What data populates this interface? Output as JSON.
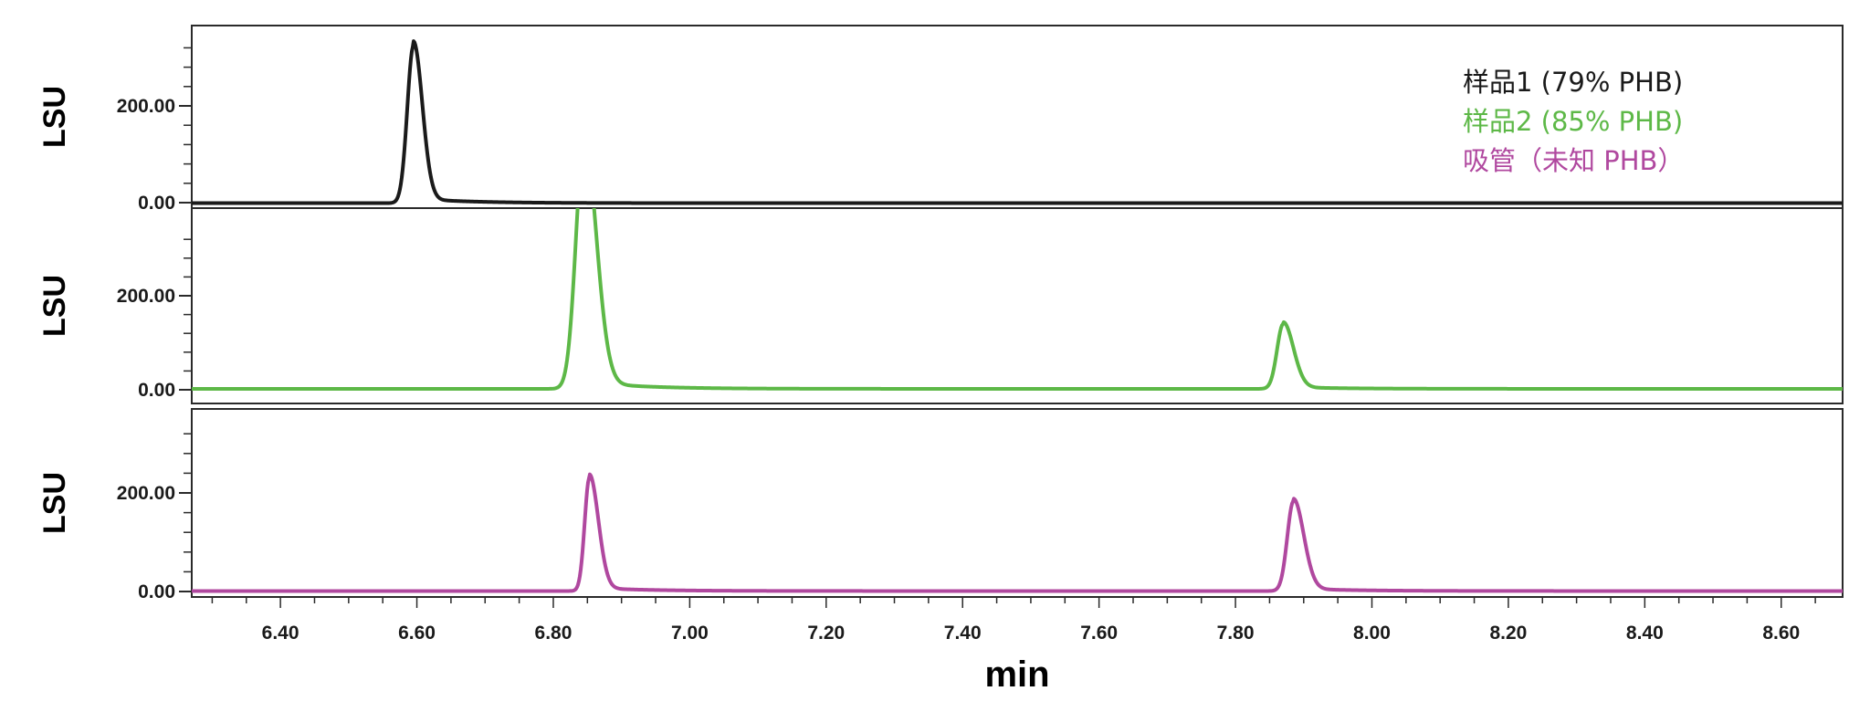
{
  "chart_data": {
    "type": "line",
    "xlabel": "min",
    "xlim": [
      6.27,
      8.69
    ],
    "x_ticks": [
      "6.40",
      "6.60",
      "6.80",
      "7.00",
      "7.20",
      "7.40",
      "7.60",
      "7.80",
      "8.00",
      "8.20",
      "8.40",
      "8.60"
    ],
    "x_tick_values": [
      6.4,
      6.6,
      6.8,
      7.0,
      7.2,
      7.4,
      7.6,
      7.8,
      8.0,
      8.2,
      8.4,
      8.6
    ],
    "panels": [
      {
        "ylabel": "LSU",
        "ylim": [
          -10,
          340
        ],
        "y_ticks": [
          "0.00",
          "200.00"
        ],
        "y_tick_values": [
          0,
          200
        ],
        "series_index": 0
      },
      {
        "ylabel": "LSU",
        "ylim": [
          -10,
          340
        ],
        "y_ticks": [
          "0.00",
          "200.00"
        ],
        "y_tick_values": [
          0,
          200
        ],
        "series_index": 1
      },
      {
        "ylabel": "LSU",
        "ylim": [
          -10,
          340
        ],
        "y_ticks": [
          "0.00",
          "200.00"
        ],
        "y_tick_values": [
          0,
          200
        ],
        "series_index": 2
      }
    ],
    "series": [
      {
        "name": "样品1 (79% PHB)",
        "color": "#1a1a1a",
        "baseline": -1,
        "peaks": [
          {
            "x": 6.595,
            "height": 325,
            "w_left": 0.009,
            "w_right": 0.013
          }
        ]
      },
      {
        "name": "样品2 (85% PHB)",
        "color": "#5db847",
        "baseline": 2,
        "peaks": [
          {
            "x": 6.845,
            "height": 520,
            "w_left": 0.012,
            "w_right": 0.018
          },
          {
            "x": 7.87,
            "height": 138,
            "w_left": 0.009,
            "w_right": 0.015
          }
        ]
      },
      {
        "name": "吸管（未知 PHB）",
        "color": "#b0489f",
        "baseline": 1,
        "peaks": [
          {
            "x": 6.853,
            "height": 230,
            "w_left": 0.007,
            "w_right": 0.013
          },
          {
            "x": 7.885,
            "height": 182,
            "w_left": 0.009,
            "w_right": 0.015
          }
        ]
      }
    ],
    "legend_position": "top-right"
  }
}
